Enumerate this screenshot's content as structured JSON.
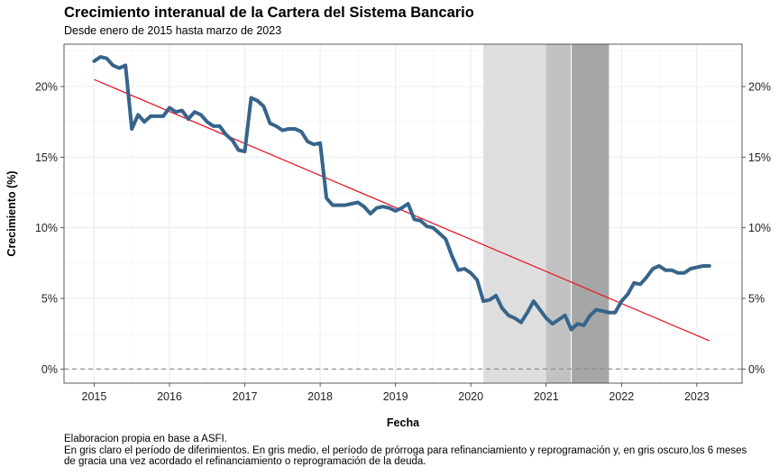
{
  "chart_data": {
    "type": "line",
    "title": "Crecimiento interanual de la Cartera del Sistema Bancario",
    "subtitle": "Desde enero de 2015 hasta marzo de 2023",
    "xlabel": "Fecha",
    "ylabel": "Crecimiento (%)",
    "xlim": [
      2014.6,
      2023.6
    ],
    "ylim": [
      -1.0,
      23.0
    ],
    "x_ticks": [
      2015,
      2016,
      2017,
      2018,
      2019,
      2020,
      2021,
      2022,
      2023
    ],
    "x_tick_labels": [
      "2015",
      "2016",
      "2017",
      "2018",
      "2019",
      "2020",
      "2021",
      "2022",
      "2023"
    ],
    "y_ticks": [
      0,
      5,
      10,
      15,
      20
    ],
    "y_tick_labels": [
      "0%",
      "5%",
      "10%",
      "15%",
      "20%"
    ],
    "grid": true,
    "secondary_y_axis": true,
    "reference_line": {
      "y": 0,
      "style": "dashed",
      "color": "#888888"
    },
    "shaded_periods": [
      {
        "start": "2020-03",
        "end": "2020-12",
        "color": "#dedede"
      },
      {
        "start": "2021-01",
        "end": "2021-04",
        "color": "#c2c2c2"
      },
      {
        "start": "2021-05",
        "end": "2021-10",
        "color": "#a6a6a6"
      }
    ],
    "x": [
      "2015-01",
      "2015-02",
      "2015-03",
      "2015-04",
      "2015-05",
      "2015-06",
      "2015-07",
      "2015-08",
      "2015-09",
      "2015-10",
      "2015-11",
      "2015-12",
      "2016-01",
      "2016-02",
      "2016-03",
      "2016-04",
      "2016-05",
      "2016-06",
      "2016-07",
      "2016-08",
      "2016-09",
      "2016-10",
      "2016-11",
      "2016-12",
      "2017-01",
      "2017-02",
      "2017-03",
      "2017-04",
      "2017-05",
      "2017-06",
      "2017-07",
      "2017-08",
      "2017-09",
      "2017-10",
      "2017-11",
      "2017-12",
      "2018-01",
      "2018-02",
      "2018-03",
      "2018-04",
      "2018-05",
      "2018-06",
      "2018-07",
      "2018-08",
      "2018-09",
      "2018-10",
      "2018-11",
      "2018-12",
      "2019-01",
      "2019-02",
      "2019-03",
      "2019-04",
      "2019-05",
      "2019-06",
      "2019-07",
      "2019-08",
      "2019-09",
      "2019-10",
      "2019-11",
      "2019-12",
      "2020-01",
      "2020-02",
      "2020-03",
      "2020-04",
      "2020-05",
      "2020-06",
      "2020-07",
      "2020-08",
      "2020-09",
      "2020-10",
      "2020-11",
      "2020-12",
      "2021-01",
      "2021-02",
      "2021-03",
      "2021-04",
      "2021-05",
      "2021-06",
      "2021-07",
      "2021-08",
      "2021-09",
      "2021-10",
      "2021-11",
      "2021-12",
      "2022-01",
      "2022-02",
      "2022-03",
      "2022-04",
      "2022-05",
      "2022-06",
      "2022-07",
      "2022-08",
      "2022-09",
      "2022-10",
      "2022-11",
      "2022-12",
      "2023-01",
      "2023-02",
      "2023-03"
    ],
    "series": [
      {
        "color": "#36648b",
        "style": "solid",
        "values": [
          21.8,
          22.1,
          22.0,
          21.5,
          21.3,
          21.5,
          17.0,
          18.0,
          17.5,
          17.9,
          17.9,
          17.9,
          18.5,
          18.2,
          18.3,
          17.7,
          18.2,
          18.0,
          17.5,
          17.2,
          17.2,
          16.6,
          16.2,
          15.5,
          15.4,
          19.2,
          19.0,
          18.6,
          17.4,
          17.2,
          16.9,
          17.0,
          17.0,
          16.8,
          16.1,
          15.9,
          16.0,
          12.1,
          11.6,
          11.6,
          11.6,
          11.7,
          11.8,
          11.5,
          11.0,
          11.4,
          11.5,
          11.4,
          11.2,
          11.4,
          11.7,
          10.6,
          10.5,
          10.1,
          10.0,
          9.6,
          9.2,
          8.0,
          7.0,
          7.1,
          6.8,
          6.3,
          4.8,
          4.9,
          5.2,
          4.3,
          3.8,
          3.6,
          3.3,
          4.0,
          4.8,
          4.2,
          3.6,
          3.2,
          3.5,
          3.8,
          2.8,
          3.2,
          3.1,
          3.8,
          4.2,
          4.1,
          4.0,
          4.0,
          4.8,
          5.3,
          6.1,
          6.0,
          6.5,
          7.1,
          7.3,
          7.0,
          7.0,
          6.8,
          6.8,
          7.1,
          7.2,
          7.3,
          7.3
        ]
      },
      {
        "color": "#e8192c",
        "style": "trend",
        "values_start": 20.5,
        "values_end": 2.0
      }
    ],
    "caption": [
      "Elaboracion propia en base a ASFI.",
      "En gris claro el período de diferimientos. En gris medio, el período de prórroga para refinanciamiento y reprogramación y, en gris oscuro,los 6 meses",
      "de gracia una vez acordado el refinanciamiento o reprogramación de la deuda."
    ]
  }
}
